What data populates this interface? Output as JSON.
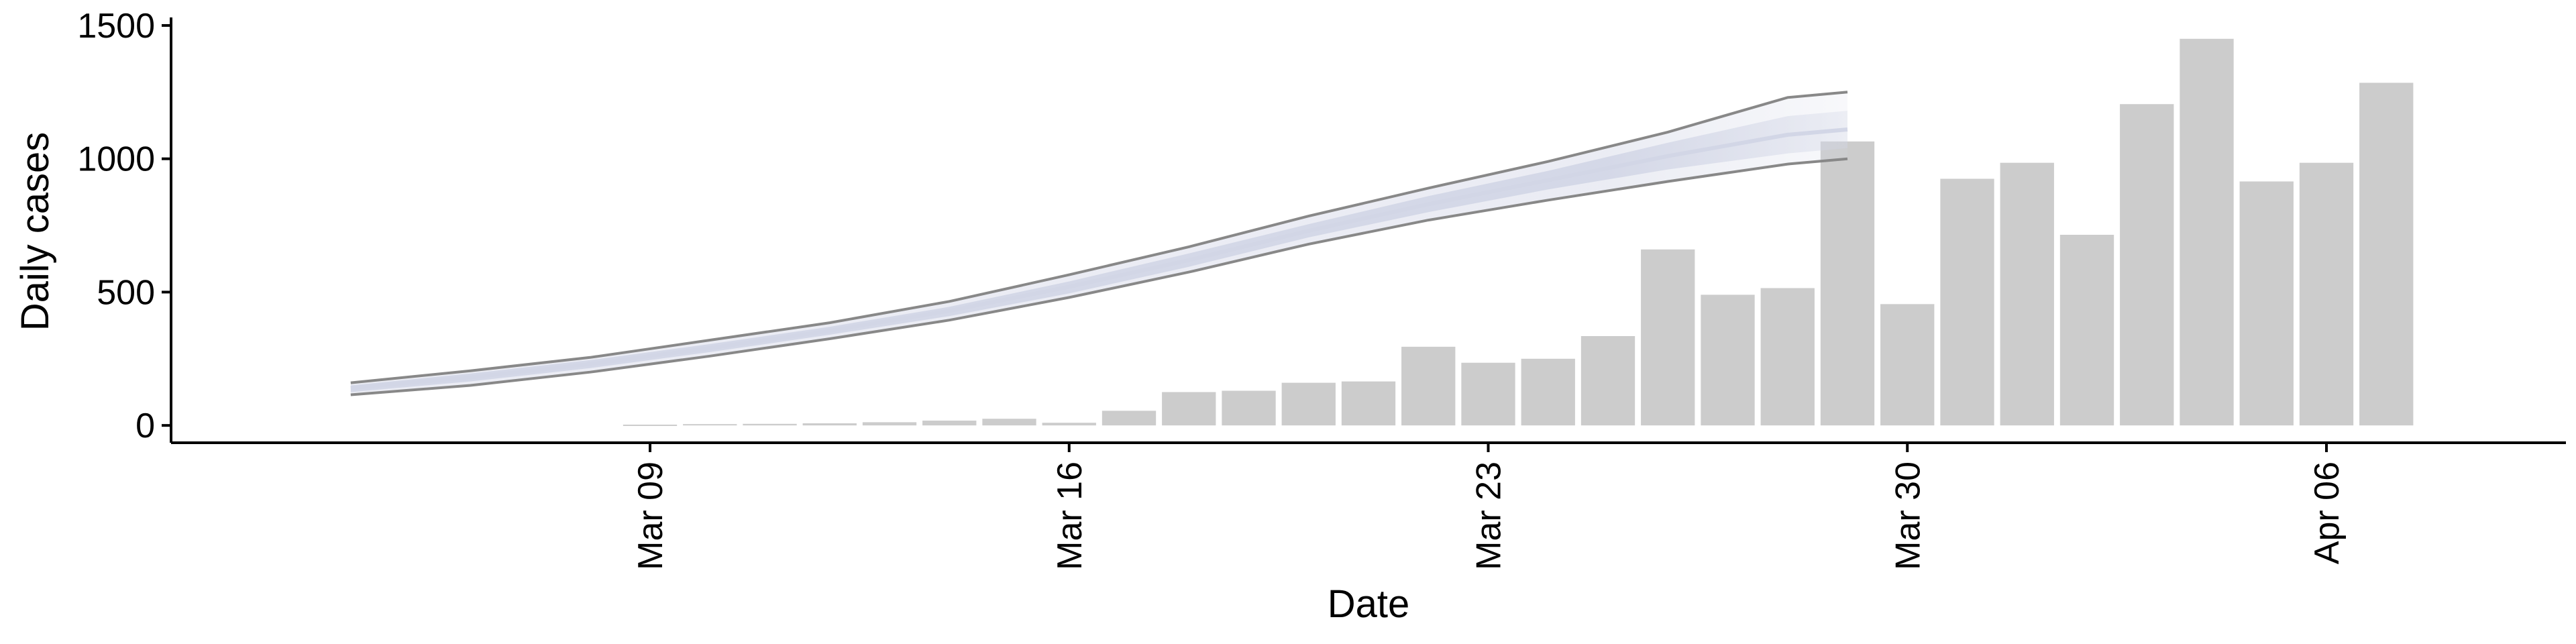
{
  "chart_data": {
    "type": "bar",
    "xlabel": "Date",
    "ylabel": "Daily cases",
    "ylim": [
      -65,
      1520
    ],
    "y_ticks": [
      0,
      500,
      1000,
      1500
    ],
    "x_range": [
      "2020-03-01",
      "2020-04-10"
    ],
    "x_ticks": [
      {
        "date": "2020-03-09",
        "label": "Mar 09"
      },
      {
        "date": "2020-03-16",
        "label": "Mar 16"
      },
      {
        "date": "2020-03-23",
        "label": "Mar 23"
      },
      {
        "date": "2020-03-30",
        "label": "Mar 30"
      },
      {
        "date": "2020-04-06",
        "label": "Apr 06"
      }
    ],
    "grid": false,
    "legend": "none",
    "bars": {
      "color": "#cccccc",
      "dates": [
        "2020-03-09",
        "2020-03-10",
        "2020-03-11",
        "2020-03-12",
        "2020-03-13",
        "2020-03-14",
        "2020-03-15",
        "2020-03-16",
        "2020-03-17",
        "2020-03-18",
        "2020-03-19",
        "2020-03-20",
        "2020-03-21",
        "2020-03-22",
        "2020-03-23",
        "2020-03-24",
        "2020-03-25",
        "2020-03-26",
        "2020-03-27",
        "2020-03-28",
        "2020-03-29",
        "2020-03-30",
        "2020-03-31",
        "2020-04-01",
        "2020-04-02",
        "2020-04-03",
        "2020-04-04",
        "2020-04-05",
        "2020-04-06",
        "2020-04-07"
      ],
      "values": [
        3,
        5,
        6,
        8,
        12,
        18,
        25,
        10,
        55,
        125,
        130,
        160,
        165,
        295,
        235,
        250,
        335,
        660,
        490,
        515,
        1065,
        455,
        925,
        985,
        715,
        1205,
        1450,
        915,
        985,
        1285
      ]
    },
    "estimate": {
      "dates": [
        "2020-03-04",
        "2020-03-06",
        "2020-03-08",
        "2020-03-10",
        "2020-03-12",
        "2020-03-14",
        "2020-03-16",
        "2020-03-18",
        "2020-03-20",
        "2020-03-22",
        "2020-03-24",
        "2020-03-26",
        "2020-03-28",
        "2020-03-29"
      ],
      "median": [
        140,
        180,
        230,
        290,
        355,
        430,
        520,
        620,
        730,
        830,
        920,
        1010,
        1090,
        1110
      ],
      "inner_lower": [
        125,
        165,
        215,
        275,
        340,
        410,
        495,
        595,
        705,
        800,
        885,
        960,
        1020,
        1040
      ],
      "inner_upper": [
        150,
        195,
        245,
        305,
        370,
        445,
        540,
        645,
        755,
        860,
        955,
        1060,
        1160,
        1180
      ],
      "outer_lower": [
        115,
        150,
        200,
        260,
        325,
        395,
        480,
        575,
        680,
        770,
        845,
        915,
        980,
        1000
      ],
      "outer_upper": [
        160,
        205,
        255,
        320,
        385,
        465,
        565,
        670,
        785,
        890,
        990,
        1100,
        1230,
        1250
      ],
      "band_color": "#d2d6e6",
      "line_color": "#888888",
      "fade_from_date": "2020-03-25"
    }
  }
}
